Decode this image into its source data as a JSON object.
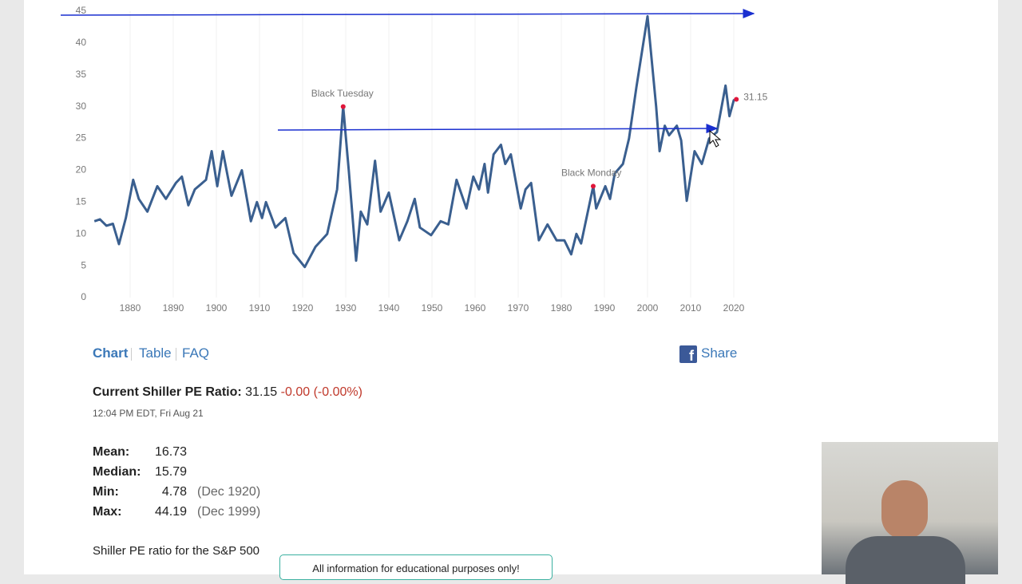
{
  "chart_data": {
    "type": "line",
    "color": "#3a5f8f",
    "x": [
      1871.7,
      1873,
      1874.5,
      1876,
      1877.4,
      1879,
      1880.7,
      1882,
      1884,
      1886.3,
      1888.3,
      1890.6,
      1892,
      1893.5,
      1895,
      1897.6,
      1898.9,
      1900.2,
      1901.5,
      1903.5,
      1905.9,
      1908,
      1909.4,
      1910.6,
      1911.5,
      1913.7,
      1916,
      1917.9,
      1920.5,
      1923,
      1925.7,
      1928,
      1929.4,
      1930.7,
      1932.4,
      1933.5,
      1935,
      1936.8,
      1938.1,
      1940,
      1942.4,
      1944.3,
      1946,
      1947.2,
      1949.8,
      1952,
      1953.8,
      1955.7,
      1958,
      1959.6,
      1960.9,
      1962.2,
      1963,
      1964.3,
      1966,
      1967,
      1968.3,
      1970.6,
      1971.7,
      1973,
      1974.8,
      1976.8,
      1978.9,
      1980.7,
      1982.3,
      1983.5,
      1984.6,
      1987.4,
      1988.1,
      1990.2,
      1991.3,
      1992.4,
      1994.3,
      1995.7,
      1997.4,
      2000,
      2002,
      2002.8,
      2004,
      2005,
      2006.8,
      2007.8,
      2009.1,
      2010.9,
      2012.6,
      2014.3,
      2016.1,
      2018.1,
      2019,
      2020,
      2020.6
    ],
    "values": [
      12,
      12.3,
      11.3,
      11.6,
      8.4,
      12.5,
      18.5,
      15.5,
      13.5,
      17.5,
      15.5,
      18,
      19,
      14.5,
      17,
      18.5,
      23,
      17.5,
      23,
      16,
      20,
      12,
      15,
      12.5,
      15,
      11,
      12.5,
      7,
      4.8,
      8,
      10,
      17,
      30,
      20,
      5.8,
      13.5,
      11.5,
      21.5,
      13.5,
      16.5,
      9,
      12,
      15.5,
      11,
      9.8,
      12,
      11.5,
      18.5,
      14,
      19,
      17,
      21,
      16.5,
      22.5,
      24,
      21,
      22.5,
      14,
      17,
      18,
      9,
      11.5,
      9,
      9,
      6.8,
      10,
      8.5,
      17.5,
      14,
      17.5,
      15.5,
      19.5,
      21,
      25,
      33,
      44.2,
      30,
      23,
      27,
      25.5,
      27,
      24.7,
      15.2,
      23,
      21,
      25,
      26,
      33.3,
      28.5,
      31,
      31.15
    ],
    "xlim": [
      1871,
      2022
    ],
    "xticks": [
      1880,
      1890,
      1900,
      1910,
      1920,
      1930,
      1940,
      1950,
      1960,
      1970,
      1980,
      1990,
      2000,
      2010,
      2020
    ],
    "ylim": [
      0,
      45
    ],
    "yticks": [
      0,
      5,
      10,
      15,
      20,
      25,
      30,
      35,
      40,
      45
    ],
    "grid": true,
    "annotations": [
      {
        "text": "Black Tuesday",
        "x": 1929.4,
        "y": 30
      },
      {
        "text": "Black Monday",
        "x": 1987.4,
        "y": 17.5
      }
    ],
    "last_value": 31.15
  },
  "tabs": [
    "Chart",
    "Table",
    "FAQ"
  ],
  "share": "Share",
  "current": {
    "label": "Current Shiller PE Ratio:",
    "value": 31.15,
    "change": "-0.00 (-0.00%)",
    "timestamp": "12:04 PM EDT, Fri Aug 21"
  },
  "stats": [
    {
      "label": "Mean:",
      "value": 16.73
    },
    {
      "label": "Median:",
      "value": 15.79
    },
    {
      "label": "Min:",
      "value": 4.78,
      "date": "(Dec 1920)"
    },
    {
      "label": "Max:",
      "value": 44.19,
      "date": "(Dec 1999)"
    }
  ],
  "footer_text": "Shiller PE ratio for the S&P 500",
  "banner": "All information for educational purposes only!"
}
